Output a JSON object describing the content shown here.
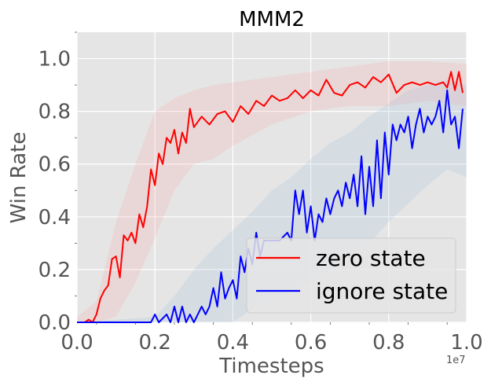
{
  "chart_data": {
    "type": "line",
    "title": "MMM2",
    "xlabel": "Timesteps",
    "ylabel": "Win Rate",
    "x_offset_label": "1e7",
    "xlim": [
      0.0,
      1.0
    ],
    "ylim": [
      0.0,
      1.1
    ],
    "x_ticks": [
      0.0,
      0.2,
      0.4,
      0.6,
      0.8,
      1.0
    ],
    "x_tick_labels": [
      "0.0",
      "0.2",
      "0.4",
      "0.6",
      "0.8",
      "1.0"
    ],
    "y_ticks": [
      0.0,
      0.2,
      0.4,
      0.6,
      0.8,
      1.0
    ],
    "y_tick_labels": [
      "0.0",
      "0.2",
      "0.4",
      "0.6",
      "0.8",
      "1.0"
    ],
    "grid": true,
    "legend_position": "lower-right",
    "colors": {
      "background": "#e5e5e5",
      "grid": "#ffffff"
    },
    "series": [
      {
        "name": "zero state",
        "color": "#ff0000",
        "x": [
          0.0,
          0.02,
          0.03,
          0.04,
          0.05,
          0.06,
          0.07,
          0.08,
          0.09,
          0.1,
          0.11,
          0.12,
          0.13,
          0.14,
          0.15,
          0.16,
          0.17,
          0.18,
          0.19,
          0.2,
          0.21,
          0.22,
          0.23,
          0.24,
          0.25,
          0.26,
          0.27,
          0.28,
          0.29,
          0.3,
          0.32,
          0.34,
          0.36,
          0.38,
          0.4,
          0.42,
          0.44,
          0.46,
          0.48,
          0.5,
          0.52,
          0.54,
          0.56,
          0.58,
          0.6,
          0.62,
          0.64,
          0.66,
          0.68,
          0.7,
          0.72,
          0.74,
          0.76,
          0.78,
          0.8,
          0.82,
          0.84,
          0.86,
          0.88,
          0.9,
          0.92,
          0.94,
          0.95,
          0.96,
          0.97,
          0.98,
          0.99
        ],
        "y": [
          0.0,
          0.0,
          0.01,
          0.0,
          0.03,
          0.09,
          0.12,
          0.14,
          0.24,
          0.25,
          0.17,
          0.33,
          0.31,
          0.34,
          0.3,
          0.41,
          0.36,
          0.44,
          0.58,
          0.52,
          0.64,
          0.6,
          0.7,
          0.68,
          0.73,
          0.64,
          0.72,
          0.68,
          0.81,
          0.74,
          0.78,
          0.75,
          0.79,
          0.8,
          0.76,
          0.82,
          0.79,
          0.84,
          0.82,
          0.86,
          0.84,
          0.85,
          0.88,
          0.85,
          0.88,
          0.86,
          0.92,
          0.87,
          0.86,
          0.9,
          0.91,
          0.89,
          0.93,
          0.91,
          0.94,
          0.87,
          0.9,
          0.91,
          0.9,
          0.91,
          0.9,
          0.91,
          0.89,
          0.95,
          0.88,
          0.95,
          0.87
        ]
      },
      {
        "name": "ignore state",
        "color": "#0000ff",
        "x": [
          0.0,
          0.18,
          0.19,
          0.2,
          0.21,
          0.23,
          0.24,
          0.25,
          0.26,
          0.27,
          0.28,
          0.29,
          0.3,
          0.31,
          0.32,
          0.33,
          0.34,
          0.35,
          0.36,
          0.37,
          0.38,
          0.39,
          0.4,
          0.41,
          0.42,
          0.43,
          0.44,
          0.45,
          0.46,
          0.47,
          0.48,
          0.5,
          0.52,
          0.54,
          0.55,
          0.56,
          0.57,
          0.58,
          0.59,
          0.6,
          0.61,
          0.62,
          0.63,
          0.64,
          0.65,
          0.66,
          0.67,
          0.68,
          0.69,
          0.7,
          0.71,
          0.72,
          0.73,
          0.74,
          0.75,
          0.76,
          0.77,
          0.78,
          0.79,
          0.8,
          0.81,
          0.82,
          0.83,
          0.84,
          0.85,
          0.86,
          0.87,
          0.88,
          0.89,
          0.9,
          0.91,
          0.92,
          0.93,
          0.94,
          0.95,
          0.96,
          0.97,
          0.98,
          0.99
        ],
        "y": [
          0.0,
          0.0,
          0.0,
          0.03,
          0.0,
          0.03,
          0.0,
          0.06,
          0.0,
          0.06,
          0.0,
          0.03,
          0.0,
          0.03,
          0.06,
          0.03,
          0.06,
          0.13,
          0.06,
          0.19,
          0.09,
          0.13,
          0.16,
          0.09,
          0.25,
          0.19,
          0.28,
          0.22,
          0.34,
          0.25,
          0.31,
          0.31,
          0.31,
          0.34,
          0.31,
          0.5,
          0.41,
          0.5,
          0.34,
          0.44,
          0.31,
          0.41,
          0.38,
          0.47,
          0.41,
          0.47,
          0.5,
          0.44,
          0.53,
          0.47,
          0.56,
          0.44,
          0.63,
          0.41,
          0.59,
          0.44,
          0.69,
          0.47,
          0.72,
          0.56,
          0.75,
          0.69,
          0.75,
          0.72,
          0.78,
          0.66,
          0.75,
          0.81,
          0.72,
          0.78,
          0.75,
          0.78,
          0.84,
          0.72,
          0.88,
          0.75,
          0.78,
          0.66,
          0.81
        ]
      }
    ],
    "bands": [
      {
        "series": "zero state",
        "color": "#ff9999",
        "opacity": 0.18,
        "x": [
          0.0,
          0.05,
          0.1,
          0.15,
          0.2,
          0.25,
          0.3,
          0.35,
          0.4,
          0.5,
          0.6,
          0.7,
          0.8,
          0.9,
          1.0
        ],
        "lower": [
          0.0,
          0.0,
          0.02,
          0.15,
          0.32,
          0.5,
          0.6,
          0.62,
          0.67,
          0.75,
          0.8,
          0.82,
          0.82,
          0.84,
          0.82
        ],
        "upper": [
          0.02,
          0.08,
          0.38,
          0.6,
          0.8,
          0.85,
          0.88,
          0.9,
          0.91,
          0.93,
          0.95,
          0.97,
          0.99,
          0.99,
          0.98
        ]
      },
      {
        "series": "ignore state",
        "color": "#9ec1dc",
        "opacity": 0.22,
        "x": [
          0.0,
          0.2,
          0.25,
          0.3,
          0.35,
          0.4,
          0.45,
          0.5,
          0.55,
          0.6,
          0.65,
          0.7,
          0.75,
          0.8,
          0.85,
          0.9,
          0.95,
          1.0
        ],
        "lower": [
          0.0,
          0.0,
          0.0,
          0.0,
          0.0,
          0.0,
          0.05,
          0.1,
          0.12,
          0.15,
          0.2,
          0.25,
          0.3,
          0.38,
          0.45,
          0.52,
          0.58,
          0.55
        ],
        "upper": [
          0.0,
          0.02,
          0.1,
          0.2,
          0.28,
          0.35,
          0.42,
          0.5,
          0.55,
          0.62,
          0.68,
          0.72,
          0.78,
          0.83,
          0.88,
          0.9,
          0.92,
          0.9
        ]
      }
    ]
  }
}
